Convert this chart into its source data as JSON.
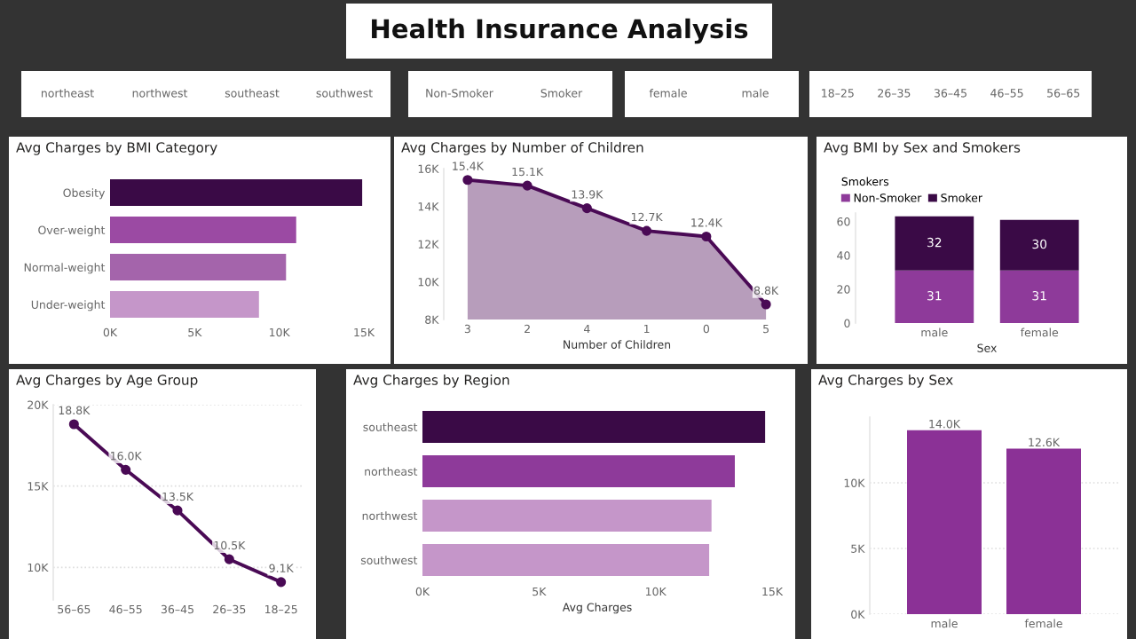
{
  "chart_data": [
    {
      "type": "other",
      "title": "Health Insurance Analysis"
    },
    {
      "type": "other",
      "annotations": [
        "northeast",
        "northwest",
        "southeast",
        "southwest"
      ]
    },
    {
      "type": "other",
      "annotations": [
        "Non-Smoker",
        "Smoker"
      ]
    },
    {
      "type": "other",
      "annotations": [
        "female",
        "male"
      ]
    },
    {
      "type": "other",
      "annotations": [
        "18–25",
        "26–35",
        "36–45",
        "46–55",
        "56–65"
      ]
    },
    {
      "type": "bar",
      "orientation": "horizontal",
      "title": "Avg Charges by BMI Category",
      "categories": [
        "Obesity",
        "Over-weight",
        "Normal-weight",
        "Under-weight"
      ],
      "values": [
        14900,
        11000,
        10400,
        8800
      ],
      "colors": [
        "#3a0a46",
        "#9b4aa3",
        "#a464ab",
        "#c596c9"
      ],
      "xlim": [
        0,
        15000
      ],
      "xticks": [
        {
          "value": 0,
          "label": "0K"
        },
        {
          "value": 5000,
          "label": "5K"
        },
        {
          "value": 10000,
          "label": "10K"
        },
        {
          "value": 15000,
          "label": "15K"
        }
      ],
      "grid": false
    },
    {
      "type": "area",
      "title": "Avg Charges by Number of Children",
      "xlabel": "Number of Children",
      "categories": [
        "3",
        "2",
        "4",
        "1",
        "0",
        "5"
      ],
      "series": [
        {
          "color": "#4a0a55",
          "values": [
            15400,
            15100,
            13900,
            12700,
            12400,
            8800
          ]
        }
      ],
      "value_labels": [
        "15.4K",
        "15.1K",
        "13.9K",
        "12.7K",
        "12.4K",
        "8.8K"
      ],
      "ylim": [
        8000,
        16000
      ],
      "yticks": [
        {
          "value": 8000,
          "label": "8K"
        },
        {
          "value": 10000,
          "label": "10K"
        },
        {
          "value": 12000,
          "label": "12K"
        },
        {
          "value": 14000,
          "label": "14K"
        },
        {
          "value": 16000,
          "label": "16K"
        }
      ],
      "marker": "circle",
      "grid": false
    },
    {
      "type": "bar",
      "stacked": true,
      "title": "Avg BMI by Sex and Smokers",
      "xlabel": "Sex",
      "legend_title": "Smokers",
      "legend": "top left",
      "categories": [
        "male",
        "female"
      ],
      "series": [
        {
          "name": "Non-Smoker",
          "color": "#8e3a9a",
          "values": [
            31,
            31
          ]
        },
        {
          "name": "Smoker",
          "color": "#3a0a46",
          "values": [
            32,
            30
          ]
        }
      ],
      "data_labels": true,
      "ylim": [
        0,
        65
      ],
      "yticks": [
        0,
        20,
        40,
        60
      ],
      "grid": false
    },
    {
      "type": "line",
      "title": "Avg Charges by Age Group",
      "categories": [
        "56–65",
        "46–55",
        "36–45",
        "26–35",
        "18–25"
      ],
      "series": [
        {
          "color": "#4a0a55",
          "values": [
            18800,
            16000,
            13500,
            10500,
            9100
          ]
        }
      ],
      "value_labels": [
        "18.8K",
        "16.0K",
        "13.5K",
        "10.5K",
        "9.1K"
      ],
      "ylim": [
        8000,
        20000
      ],
      "yticks": [
        {
          "value": 10000,
          "label": "10K"
        },
        {
          "value": 15000,
          "label": "15K"
        },
        {
          "value": 20000,
          "label": "20K"
        }
      ],
      "marker": "circle",
      "grid": "y"
    },
    {
      "type": "bar",
      "orientation": "horizontal",
      "title": "Avg Charges by Region",
      "xlabel": "Avg Charges",
      "categories": [
        "southeast",
        "northeast",
        "northwest",
        "southwest"
      ],
      "values": [
        14700,
        13400,
        12400,
        12300
      ],
      "colors": [
        "#3a0a46",
        "#8e3a9a",
        "#c596c9",
        "#c596c9"
      ],
      "xlim": [
        0,
        15000
      ],
      "xticks": [
        {
          "value": 0,
          "label": "0K"
        },
        {
          "value": 5000,
          "label": "5K"
        },
        {
          "value": 10000,
          "label": "10K"
        },
        {
          "value": 15000,
          "label": "15K"
        }
      ],
      "grid": false
    },
    {
      "type": "bar",
      "title": "Avg Charges by Sex",
      "categories": [
        "male",
        "female"
      ],
      "values": [
        14000,
        12600
      ],
      "colors": [
        "#8b3196",
        "#8b3196"
      ],
      "value_labels": [
        "14.0K",
        "12.6K"
      ],
      "ylim": [
        0,
        15000
      ],
      "yticks": [
        {
          "value": 0,
          "label": "0K"
        },
        {
          "value": 5000,
          "label": "5K"
        },
        {
          "value": 10000,
          "label": "10K"
        }
      ],
      "grid": "y"
    }
  ]
}
